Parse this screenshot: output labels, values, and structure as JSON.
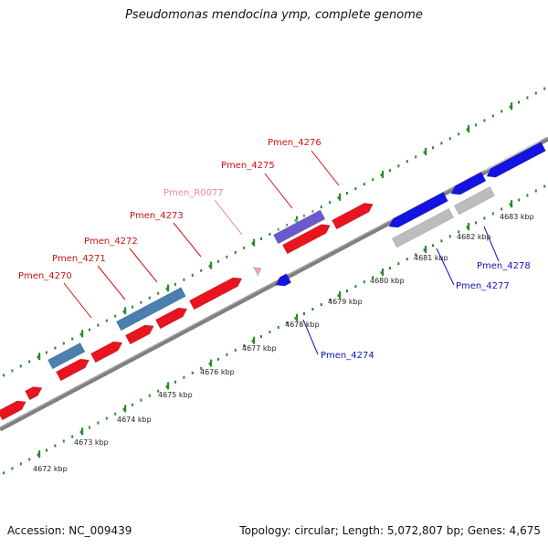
{
  "title": "Pseudomonas mendocina ymp, complete genome",
  "footer": {
    "accession": "Accession: NC_009439",
    "topology": "Topology: circular; Length: 5,072,807 bp; Genes: 4,675"
  },
  "colors": {
    "forward_cds": "#e8141e",
    "reverse_cds": "#1414e0",
    "blue_gray_gene": "#4a7fb0",
    "purple_gene": "#6a5acd",
    "grey_gene": "#bdbdbd",
    "pseudo_rna": "#f4a0c8",
    "backbone": "#808080",
    "ticks": "#2a8a2a"
  },
  "scale_labels": [
    "4672 kbp",
    "4673 kbp",
    "4674 kbp",
    "4675 kbp",
    "4676 kbp",
    "4677 kbp",
    "4678 kbp",
    "4679 kbp",
    "4680 kbp",
    "4681 kbp",
    "4682 kbp",
    "4683 kbp"
  ],
  "labels": [
    {
      "text": "Pmen_4270",
      "color": "#d01010"
    },
    {
      "text": "Pmen_4271",
      "color": "#d01010"
    },
    {
      "text": "Pmen_4272",
      "color": "#d01010"
    },
    {
      "text": "Pmen_4273",
      "color": "#d01010"
    },
    {
      "text": "Pmen_R0077",
      "color": "#f080b0"
    },
    {
      "text": "Pmen_4275",
      "color": "#d01010"
    },
    {
      "text": "Pmen_4276",
      "color": "#d01010"
    },
    {
      "text": "Pmen_4274",
      "color": "#1010c0"
    },
    {
      "text": "Pmen_4277",
      "color": "#1010c0"
    },
    {
      "text": "Pmen_4278",
      "color": "#1010c0"
    }
  ]
}
